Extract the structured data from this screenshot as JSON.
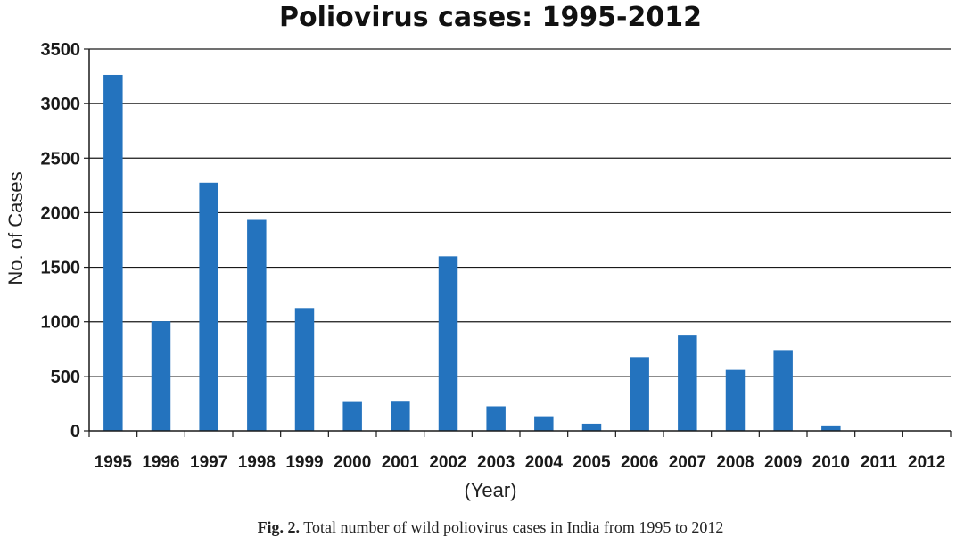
{
  "chart_data": {
    "type": "bar",
    "title": "Poliovirus cases: 1995-2012",
    "xlabel": "(Year)",
    "ylabel": "No. of Cases",
    "categories": [
      "1995",
      "1996",
      "1997",
      "1998",
      "1999",
      "2000",
      "2001",
      "2002",
      "2003",
      "2004",
      "2005",
      "2006",
      "2007",
      "2008",
      "2009",
      "2010",
      "2011",
      "2012"
    ],
    "values": [
      3263,
      1005,
      2275,
      1934,
      1126,
      265,
      268,
      1600,
      225,
      134,
      66,
      676,
      874,
      559,
      741,
      42,
      1,
      0
    ],
    "ylim": [
      0,
      3500
    ],
    "yticks": [
      "0",
      "500",
      "1000",
      "1500",
      "2000",
      "2500",
      "3000",
      "3500"
    ],
    "grid": true,
    "bar_color": "#2473BE"
  },
  "caption": {
    "label": "Fig. 2.",
    "text": "Total number of wild poliovirus cases in India from 1995 to 2012"
  }
}
